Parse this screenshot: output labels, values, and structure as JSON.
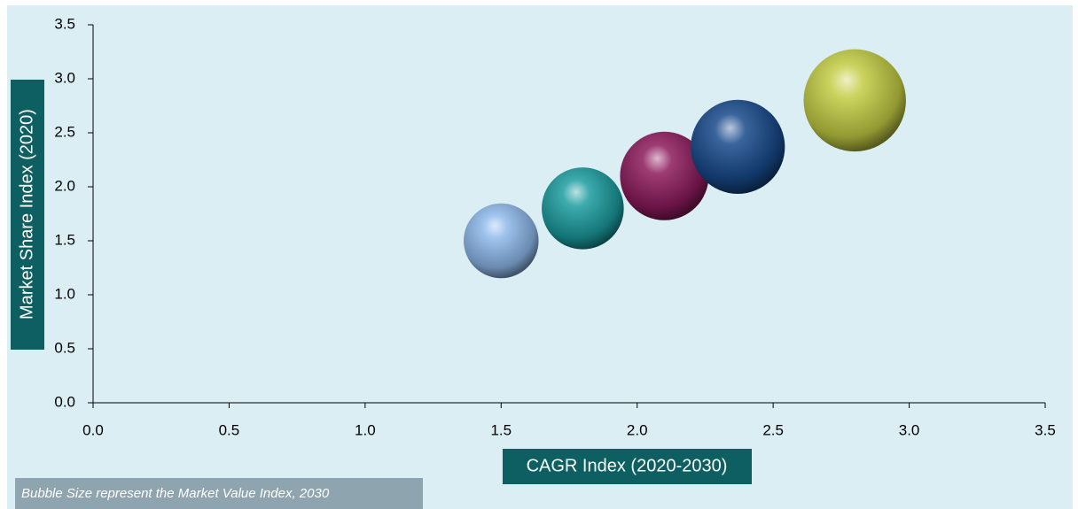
{
  "chart_data": {
    "type": "bubble",
    "x_label": "CAGR Index (2020-2030)",
    "y_label": "Market Share Index (2020)",
    "note": "Bubble Size represent the Market Value Index, 2030",
    "x": [
      1.5,
      1.8,
      2.1,
      2.37,
      2.8
    ],
    "y": [
      1.5,
      1.8,
      2.1,
      2.37,
      2.8
    ],
    "sizes": [
      1.5,
      1.8,
      2.1,
      2.37,
      2.8
    ],
    "colors": [
      "#8db8ea",
      "#1b9c9e",
      "#8c1a5c",
      "#17498a",
      "#c2cc42"
    ],
    "xlim": [
      0,
      3.5
    ],
    "ylim": [
      0,
      3.5
    ],
    "xticks": [
      {
        "value": 0,
        "label": "0.0"
      },
      0.5,
      {
        "value": 1,
        "label": "1.0"
      },
      1.5,
      {
        "value": 2,
        "label": "2.0"
      },
      2.5,
      {
        "value": 3,
        "label": "3.0"
      },
      3.5
    ],
    "yticks": [
      {
        "value": 0,
        "label": "0.0"
      },
      0.5,
      {
        "value": 1,
        "label": "1.0"
      },
      1.5,
      {
        "value": 2,
        "label": "2.0"
      },
      2.5,
      {
        "value": 3,
        "label": "3.0"
      },
      3.5
    ]
  }
}
